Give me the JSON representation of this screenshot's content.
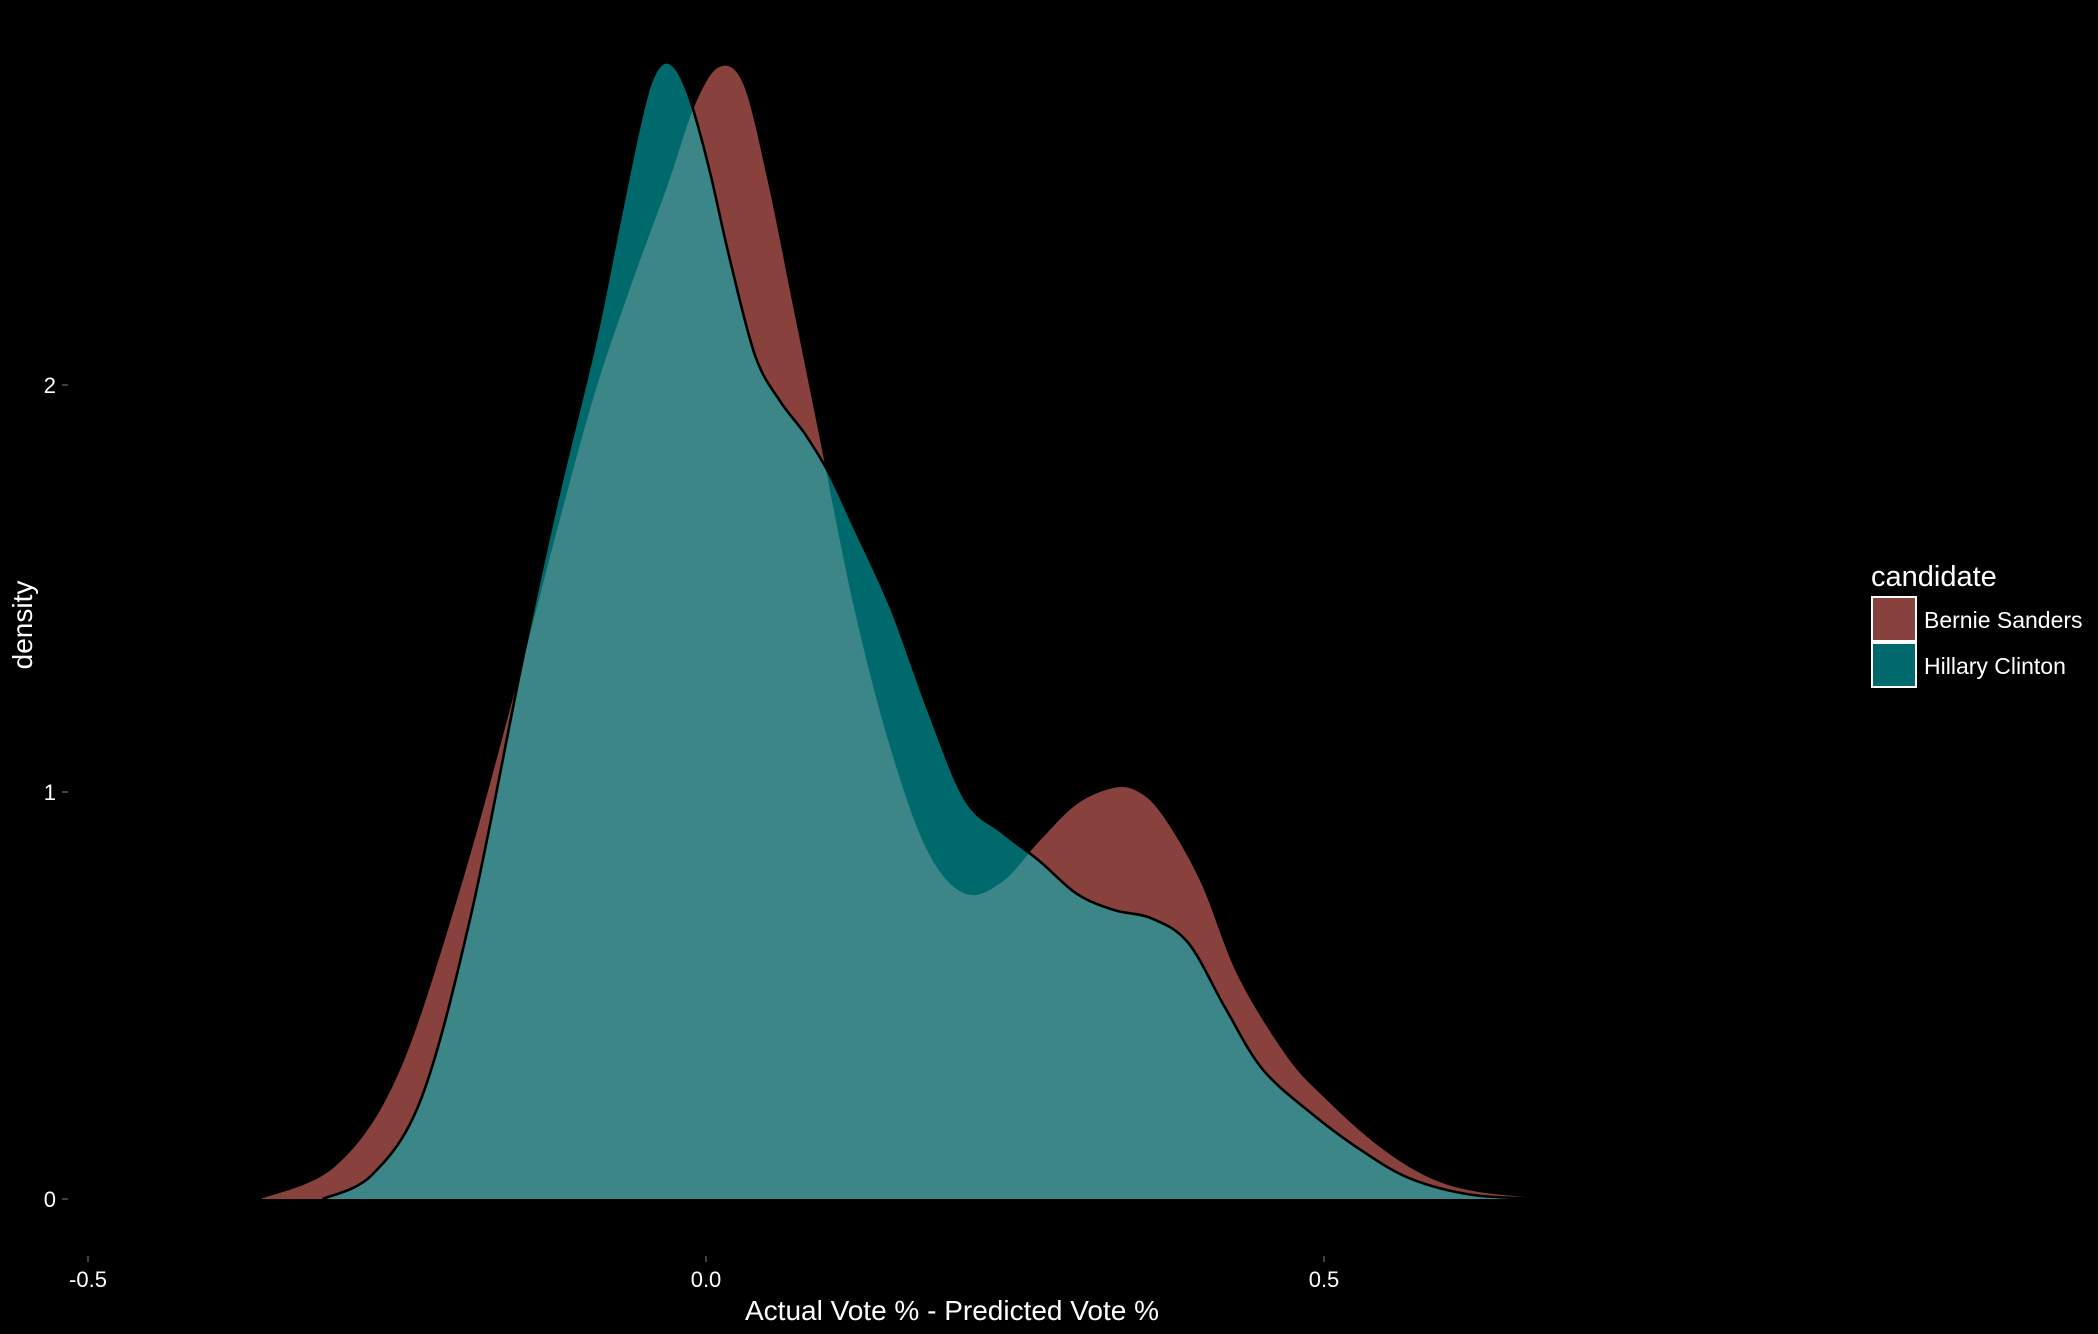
{
  "chart_data": {
    "type": "area",
    "title": "",
    "xlabel": "Actual Vote % - Predicted Vote %",
    "ylabel": "density",
    "xlim": [
      -0.5,
      0.7
    ],
    "ylim": [
      -0.13,
      2.85
    ],
    "xticks": [
      -0.5,
      0.0,
      0.5
    ],
    "xtick_labels": [
      "-0.5",
      "0.0",
      "0.5"
    ],
    "yticks": [
      0,
      1,
      2
    ],
    "ytick_labels": [
      "0",
      "1",
      "2"
    ],
    "grid": false,
    "background": "#000000",
    "legend": {
      "title": "candidate",
      "position": "right",
      "entries": [
        "Bernie Sanders",
        "Hillary Clinton"
      ]
    },
    "series": [
      {
        "name": "Bernie Sanders",
        "color": "#f8766d",
        "fill_opacity": 0.55,
        "outline": false,
        "x": [
          -0.36,
          -0.3,
          -0.25,
          -0.2,
          -0.15,
          -0.12,
          -0.09,
          -0.06,
          -0.03,
          -0.01,
          0.01,
          0.03,
          0.05,
          0.07,
          0.09,
          0.12,
          0.15,
          0.18,
          0.21,
          0.24,
          0.27,
          0.3,
          0.33,
          0.35,
          0.37,
          0.4,
          0.43,
          0.47,
          0.5,
          0.54,
          0.58,
          0.62,
          0.68
        ],
        "y": [
          0.0,
          0.08,
          0.3,
          0.75,
          1.3,
          1.65,
          1.98,
          2.25,
          2.5,
          2.68,
          2.78,
          2.74,
          2.5,
          2.2,
          1.9,
          1.45,
          1.1,
          0.85,
          0.75,
          0.78,
          0.88,
          0.97,
          1.01,
          1.0,
          0.94,
          0.78,
          0.55,
          0.35,
          0.25,
          0.14,
          0.06,
          0.02,
          0.0
        ]
      },
      {
        "name": "Hillary Clinton",
        "color": "#00bfc4",
        "fill_opacity": 0.55,
        "outline": true,
        "x": [
          -0.31,
          -0.27,
          -0.23,
          -0.19,
          -0.15,
          -0.12,
          -0.09,
          -0.07,
          -0.055,
          -0.045,
          -0.035,
          -0.025,
          -0.015,
          -0.005,
          0.005,
          0.02,
          0.04,
          0.06,
          0.08,
          0.1,
          0.12,
          0.15,
          0.18,
          0.21,
          0.24,
          0.27,
          0.3,
          0.33,
          0.36,
          0.39,
          0.42,
          0.45,
          0.49,
          0.53,
          0.57,
          0.62,
          0.68
        ],
        "y": [
          0.0,
          0.06,
          0.25,
          0.7,
          1.3,
          1.72,
          2.1,
          2.4,
          2.62,
          2.74,
          2.79,
          2.78,
          2.72,
          2.62,
          2.5,
          2.3,
          2.07,
          1.96,
          1.88,
          1.78,
          1.65,
          1.45,
          1.2,
          0.98,
          0.9,
          0.83,
          0.75,
          0.71,
          0.69,
          0.63,
          0.47,
          0.32,
          0.21,
          0.12,
          0.05,
          0.01,
          0.0
        ]
      }
    ]
  }
}
